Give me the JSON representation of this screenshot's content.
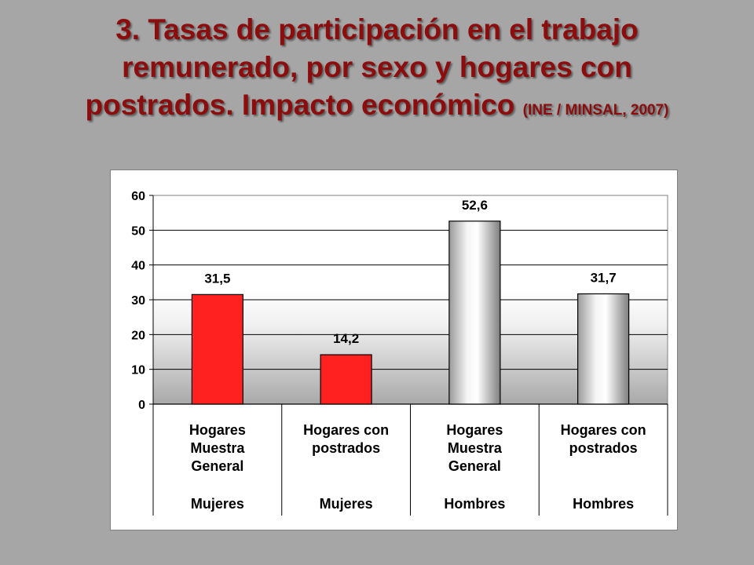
{
  "title": {
    "line1": "3. Tasas de participación en el trabajo",
    "line2": "remunerado, por sexo y hogares con",
    "line3": "postrados. Impacto económico",
    "source": "(INE / MINSAL, 2007)"
  },
  "colors": {
    "title": "#8b0d0d",
    "background": "#a6a6a6",
    "bar_red": "#ff2020",
    "bar_gray": "#d9d9d9"
  },
  "chart_data": {
    "type": "bar",
    "categories": [
      {
        "lines": [
          "Hogares",
          "Muestra",
          "General"
        ],
        "group": "Mujeres"
      },
      {
        "lines": [
          "Hogares con",
          "postrados"
        ],
        "group": "Mujeres"
      },
      {
        "lines": [
          "Hogares",
          "Muestra",
          "General"
        ],
        "group": "Hombres"
      },
      {
        "lines": [
          "Hogares con",
          "postrados"
        ],
        "group": "Hombres"
      }
    ],
    "values": [
      31.5,
      14.2,
      52.6,
      31.7
    ],
    "value_labels": [
      "31,5",
      "14,2",
      "52,6",
      "31,7"
    ],
    "bar_colors": [
      "red",
      "red",
      "gray",
      "gray"
    ],
    "ylim": [
      0,
      60
    ],
    "yticks": [
      0,
      10,
      20,
      30,
      40,
      50,
      60
    ],
    "grid": true,
    "legend": "none",
    "xlabel": "",
    "ylabel": ""
  }
}
